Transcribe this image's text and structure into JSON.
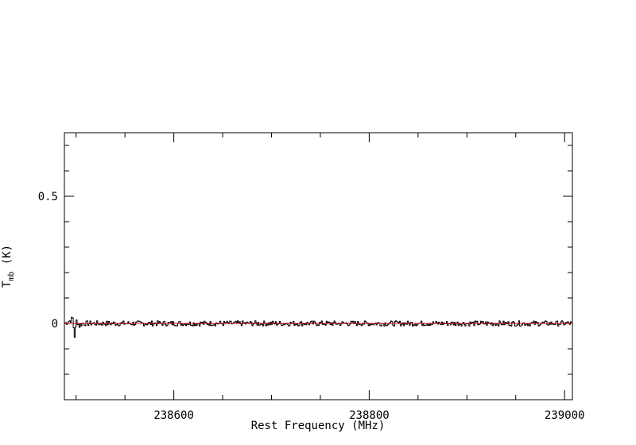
{
  "chart_data": {
    "type": "line",
    "title": "",
    "xlabel": "Rest Frequency (MHz)",
    "ylabel": {
      "main": "T",
      "subscript": "mb",
      "unit": " (K)"
    },
    "xlim": [
      238488,
      239008
    ],
    "ylim": [
      -0.3,
      0.75
    ],
    "x_ticks": [
      238600,
      238800,
      239000
    ],
    "x_tick_labels": [
      "238600",
      "238800",
      "239000"
    ],
    "y_ticks": [
      0,
      0.5
    ],
    "y_tick_labels": [
      "0",
      "0.5"
    ],
    "grid": false,
    "series": [
      {
        "color": "#000000",
        "style": "histogram",
        "x": [
          238488,
          238493,
          238496,
          238498,
          238500,
          238503,
          238506,
          238520,
          238550,
          238600,
          238650,
          238700,
          238750,
          238800,
          238850,
          238900,
          238950,
          239008
        ],
        "values": [
          0.0,
          0.01,
          0.02,
          -0.05,
          0.01,
          -0.01,
          0.0,
          0.0,
          0.0,
          0.0,
          0.0,
          0.0,
          0.0,
          0.0,
          0.0,
          0.0,
          0.0,
          0.0
        ],
        "noise_rms": 0.006
      },
      {
        "color": "#cc0000",
        "style": "line",
        "x": [
          238488,
          239008
        ],
        "values": [
          0.0,
          0.0
        ]
      }
    ]
  }
}
